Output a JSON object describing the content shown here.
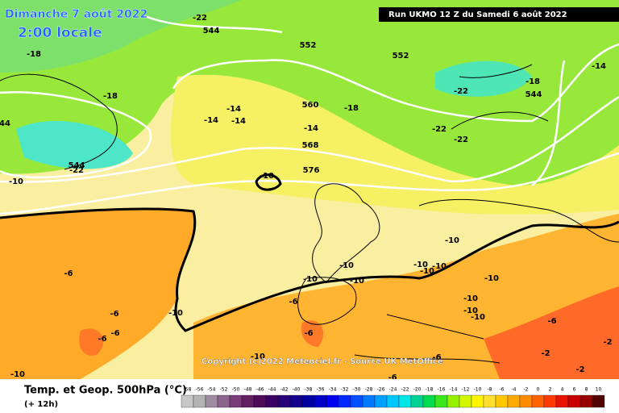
{
  "header": {
    "date": "Dimanche 7 août 2022",
    "time": "2:00 locale",
    "run": "Run UKMO 12 Z du Samedi 6 août 2022"
  },
  "footer": {
    "title": "Temp. et Geop. 500hPa (°C)",
    "lead": "(+ 12h)",
    "copyright": "Copyright (c)2022 Meteociel.fr - Source UK MetOffice"
  },
  "contour_labels": [
    -22,
    544,
    -18,
    -18,
    552,
    552,
    560,
    -18,
    -14,
    -14,
    -14,
    -14,
    568,
    576,
    -10,
    544,
    -22,
    -10,
    -22,
    -18,
    544,
    -22,
    -22,
    -14,
    44,
    -6,
    -6,
    -6,
    -6,
    -10,
    -10,
    -6,
    -6,
    -10,
    -10,
    -10,
    -10,
    -10,
    -10,
    -10,
    -10,
    -10,
    -10,
    -6,
    -6,
    -6,
    -2,
    -2,
    -2,
    -10,
    -10
  ],
  "colorbar": {
    "labels": [
      -58,
      -56,
      -54,
      -52,
      -50,
      -48,
      -46,
      -44,
      -42,
      -40,
      -38,
      -36,
      -34,
      -32,
      -30,
      -28,
      -26,
      -24,
      -22,
      -20,
      -18,
      -16,
      -14,
      -12,
      -10,
      -8,
      -6,
      -4,
      -2,
      0,
      2,
      4,
      6,
      8,
      10
    ],
    "colors": [
      "#c8c8c8",
      "#b4b4b4",
      "#a08ca0",
      "#8c648c",
      "#783c78",
      "#641e64",
      "#500a5a",
      "#3c0064",
      "#280078",
      "#14008c",
      "#0000a0",
      "#0000c8",
      "#0000f0",
      "#0028ff",
      "#0050ff",
      "#0078ff",
      "#00a0ff",
      "#00c8ff",
      "#00e6e6",
      "#00d296",
      "#00dc50",
      "#3ce61e",
      "#96f000",
      "#d2f500",
      "#fff500",
      "#ffe12d",
      "#ffc800",
      "#ffaa00",
      "#ff8c00",
      "#ff6400",
      "#ff3c00",
      "#e61400",
      "#c80000",
      "#960000",
      "#500000"
    ]
  }
}
